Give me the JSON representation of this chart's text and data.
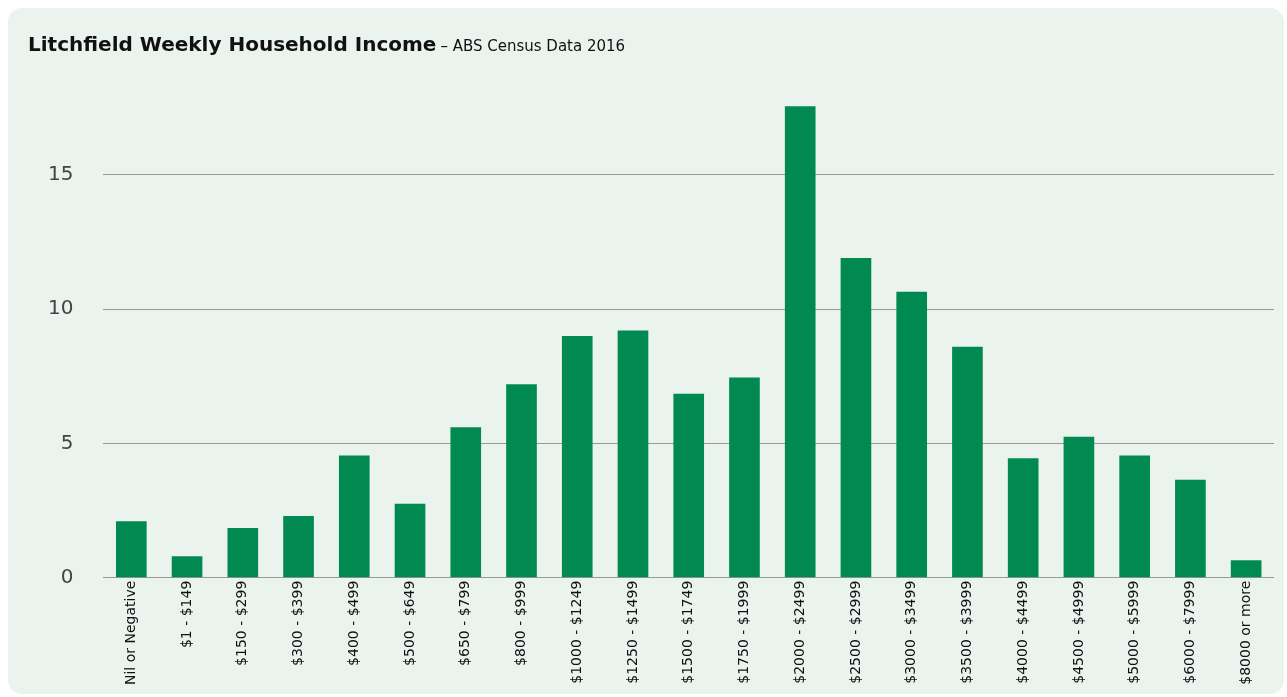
{
  "chart_data": {
    "type": "bar",
    "title": "Litchfield Weekly Household Income",
    "subtitle": "– ABS Census Data 2016",
    "categories": [
      "Nil or Negative",
      "$1 - $149",
      "$150 - $299",
      "$300 - $399",
      "$400 - $499",
      "$500 - $649",
      "$650 - $799",
      "$800 - $999",
      "$1000 - $1249",
      "$1250 - $1499",
      "$1500 - $1749",
      "$1750 - $1999",
      "$2000 - $2499",
      "$2500 - $2999",
      "$3000 - $3499",
      "$3500 - $3999",
      "$4000 - $4499",
      "$4500 - $4999",
      "$5000 - $5999",
      "$6000 - $7999",
      "$8000 or more"
    ],
    "values": [
      2.1,
      0.8,
      1.85,
      2.3,
      4.55,
      2.75,
      5.6,
      7.2,
      9.0,
      9.2,
      6.85,
      7.45,
      17.55,
      11.9,
      10.65,
      8.6,
      4.45,
      5.25,
      4.55,
      3.65,
      0.65
    ],
    "color": "#008a52",
    "ylim": [
      0,
      17.6
    ],
    "yticks": [
      0,
      5,
      10,
      15
    ],
    "grid": "y",
    "legend": false
  }
}
